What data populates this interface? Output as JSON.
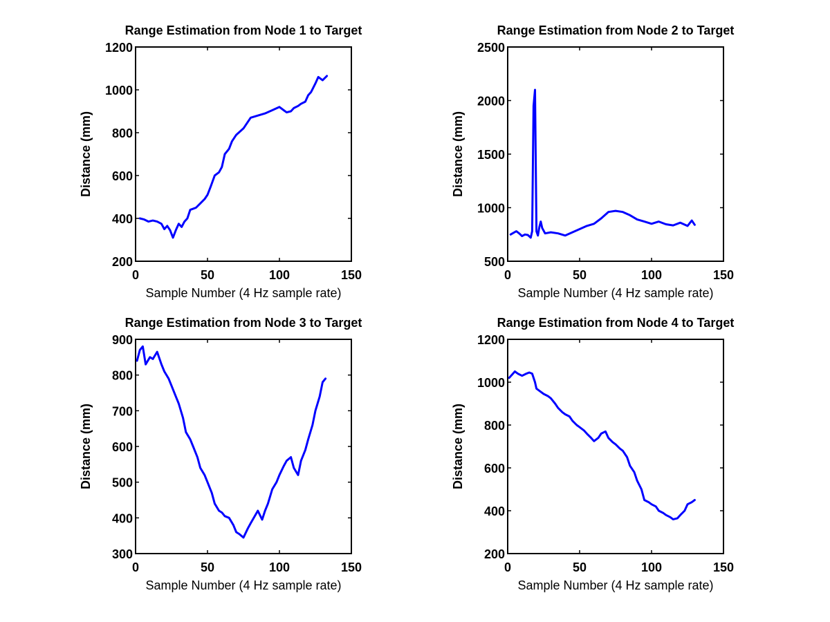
{
  "colors": {
    "series": "#0000ff",
    "axis": "#000000",
    "background": "#ffffff"
  },
  "chart_data": [
    {
      "type": "line",
      "title": "Range Estimation from Node 1 to Target",
      "xlabel": "Sample Number (4 Hz sample rate)",
      "ylabel": "Distance (mm)",
      "xlim": [
        0,
        150
      ],
      "ylim": [
        200,
        1200
      ],
      "xticks": [
        "0",
        "50",
        "100",
        "150"
      ],
      "yticks": [
        "200",
        "400",
        "600",
        "800",
        "1000",
        "1200"
      ],
      "grid": false,
      "x": [
        3,
        6,
        9,
        12,
        15,
        18,
        20,
        22,
        24,
        26,
        28,
        30,
        32,
        34,
        36,
        38,
        40,
        42,
        45,
        48,
        50,
        52,
        55,
        58,
        60,
        62,
        65,
        67,
        70,
        75,
        80,
        85,
        90,
        95,
        100,
        103,
        105,
        108,
        110,
        113,
        115,
        118,
        120,
        122,
        125,
        127,
        130,
        133
      ],
      "y": [
        400,
        395,
        385,
        390,
        385,
        375,
        350,
        365,
        345,
        310,
        345,
        375,
        360,
        385,
        400,
        440,
        445,
        450,
        470,
        490,
        510,
        545,
        600,
        615,
        640,
        700,
        725,
        760,
        790,
        820,
        870,
        880,
        890,
        905,
        920,
        905,
        895,
        900,
        915,
        925,
        935,
        945,
        975,
        990,
        1030,
        1060,
        1045,
        1065
      ]
    },
    {
      "type": "line",
      "title": "Range Estimation from Node 2 to Target",
      "xlabel": "Sample Number (4 Hz sample rate)",
      "ylabel": "Distance (mm)",
      "xlim": [
        0,
        150
      ],
      "ylim": [
        500,
        2500
      ],
      "xticks": [
        "0",
        "50",
        "100",
        "150"
      ],
      "yticks": [
        "500",
        "1000",
        "1500",
        "2000",
        "2500"
      ],
      "grid": false,
      "x": [
        2,
        4,
        6,
        8,
        10,
        12,
        14,
        16,
        17,
        18,
        19,
        20,
        21,
        22,
        23,
        24,
        26,
        30,
        35,
        40,
        45,
        50,
        55,
        60,
        65,
        70,
        75,
        80,
        85,
        90,
        95,
        100,
        105,
        110,
        115,
        120,
        125,
        128,
        130
      ],
      "y": [
        750,
        765,
        780,
        760,
        735,
        750,
        745,
        720,
        780,
        1950,
        2100,
        780,
        740,
        820,
        870,
        810,
        760,
        770,
        760,
        740,
        770,
        800,
        830,
        850,
        900,
        960,
        970,
        960,
        930,
        890,
        870,
        850,
        870,
        845,
        835,
        860,
        830,
        880,
        840
      ]
    },
    {
      "type": "line",
      "title": "Range Estimation from Node 3 to Target",
      "xlabel": "Sample Number (4 Hz sample rate)",
      "ylabel": "Distance (mm)",
      "xlim": [
        0,
        150
      ],
      "ylim": [
        300,
        900
      ],
      "xticks": [
        "0",
        "50",
        "100",
        "150"
      ],
      "yticks": [
        "300",
        "400",
        "500",
        "600",
        "700",
        "800",
        "900"
      ],
      "grid": false,
      "x": [
        1,
        3,
        5,
        7,
        10,
        12,
        15,
        18,
        20,
        23,
        25,
        28,
        30,
        33,
        35,
        38,
        40,
        43,
        45,
        48,
        50,
        53,
        55,
        58,
        60,
        62,
        65,
        68,
        70,
        72,
        75,
        78,
        80,
        85,
        88,
        90,
        92,
        95,
        98,
        100,
        103,
        105,
        108,
        110,
        113,
        115,
        118,
        120,
        123,
        125,
        128,
        130,
        132
      ],
      "y": [
        840,
        870,
        880,
        830,
        850,
        845,
        865,
        830,
        810,
        790,
        770,
        740,
        720,
        680,
        640,
        620,
        600,
        570,
        540,
        520,
        500,
        470,
        440,
        420,
        415,
        405,
        400,
        380,
        360,
        355,
        345,
        370,
        385,
        420,
        395,
        420,
        440,
        480,
        500,
        520,
        545,
        560,
        570,
        540,
        520,
        560,
        590,
        620,
        660,
        700,
        740,
        780,
        790
      ]
    },
    {
      "type": "line",
      "title": "Range Estimation from Node 4 to Target",
      "xlabel": "Sample Number (4 Hz sample rate)",
      "ylabel": "Distance (mm)",
      "xlim": [
        0,
        150
      ],
      "ylim": [
        200,
        1200
      ],
      "xticks": [
        "0",
        "50",
        "100",
        "150"
      ],
      "yticks": [
        "200",
        "400",
        "600",
        "800",
        "1000",
        "1200"
      ],
      "grid": false,
      "x": [
        1,
        3,
        5,
        7,
        10,
        13,
        15,
        17,
        19,
        20,
        22,
        25,
        28,
        30,
        33,
        35,
        38,
        40,
        43,
        45,
        48,
        50,
        53,
        55,
        58,
        60,
        63,
        65,
        68,
        70,
        73,
        75,
        78,
        80,
        83,
        85,
        88,
        90,
        93,
        95,
        98,
        100,
        103,
        105,
        108,
        110,
        113,
        115,
        118,
        120,
        123,
        125,
        128,
        130
      ],
      "y": [
        1020,
        1035,
        1050,
        1040,
        1030,
        1040,
        1045,
        1040,
        1000,
        970,
        960,
        945,
        935,
        925,
        900,
        880,
        860,
        850,
        840,
        820,
        800,
        790,
        775,
        760,
        740,
        725,
        740,
        760,
        770,
        740,
        720,
        710,
        690,
        680,
        650,
        610,
        580,
        540,
        500,
        450,
        440,
        430,
        420,
        400,
        390,
        380,
        370,
        360,
        365,
        380,
        400,
        430,
        440,
        450
      ]
    }
  ]
}
